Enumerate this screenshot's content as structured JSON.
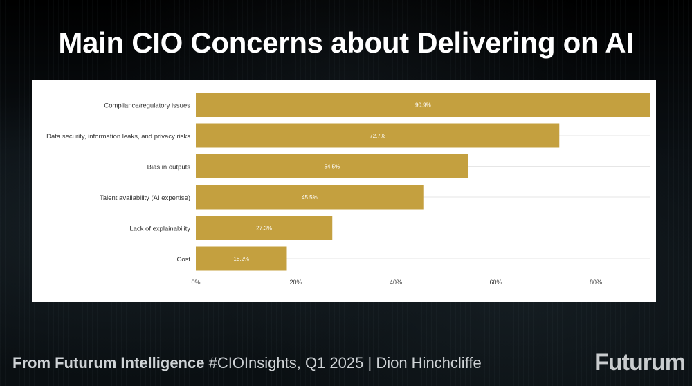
{
  "title": "Main CIO Concerns about Delivering on AI",
  "footer": {
    "source_bold": "From Futurum Intelligence",
    "source_rest": " #CIOInsights, Q1 2025 | Dion Hinchcliffe"
  },
  "brand": "Futurum",
  "colors": {
    "bar": "#c4a03f",
    "bar_label": "#ffffff",
    "gridline": "#e6e6e6",
    "axis_text": "#333333"
  },
  "chart_data": {
    "type": "bar",
    "orientation": "horizontal",
    "title": "Main CIO Concerns about Delivering on AI",
    "xlabel": "",
    "ylabel": "",
    "categories": [
      "Compliance/regulatory issues",
      "Data security, information leaks, and privacy risks",
      "Bias in outputs",
      "Talent availability (AI expertise)",
      "Lack of explainability",
      "Cost"
    ],
    "values": [
      90.9,
      72.7,
      54.5,
      45.5,
      27.3,
      18.2
    ],
    "data_labels": [
      "90.9%",
      "72.7%",
      "54.5%",
      "45.5%",
      "27.3%",
      "18.2%"
    ],
    "xlim": [
      0,
      91
    ],
    "x_ticks": [
      0,
      20,
      40,
      60,
      80
    ],
    "x_tick_labels": [
      "0%",
      "20%",
      "40%",
      "60%",
      "80%"
    ],
    "grid": "horizontal",
    "legend": "none"
  }
}
